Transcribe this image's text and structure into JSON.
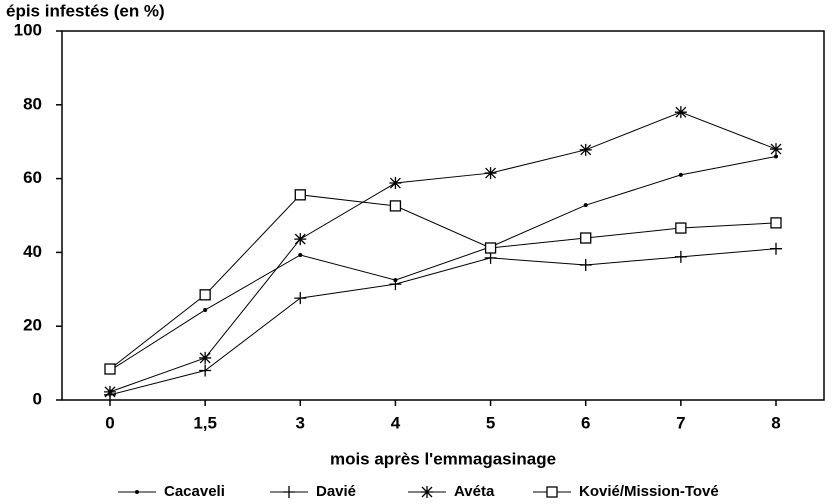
{
  "chart_data": {
    "type": "line",
    "title": "épis infestés (en %)",
    "x_label": "mois après l'emmagasinage",
    "categories": [
      "0",
      "1,5",
      "3",
      "4",
      "5",
      "6",
      "7",
      "8"
    ],
    "ylim": [
      0,
      100
    ],
    "yticks": [
      0,
      20,
      40,
      60,
      80,
      100
    ],
    "legend": "bottom",
    "series": [
      {
        "name": "Cacaveli",
        "color": "#000",
        "marker": "dot",
        "values": [
          8,
          24.4,
          39.3,
          32.5,
          41.5,
          52.8,
          61,
          66
        ]
      },
      {
        "name": "Davié",
        "color": "#000",
        "marker": "plus",
        "values": [
          1.4,
          8,
          27.6,
          31.4,
          38.5,
          36.6,
          38.8,
          41
        ]
      },
      {
        "name": "Avéta",
        "color": "#000",
        "marker": "star",
        "values": [
          2.2,
          11.4,
          43.6,
          58.8,
          61.5,
          67.8,
          78,
          68
        ]
      },
      {
        "name": "Kovié/Mission-Tové",
        "color": "#000",
        "marker": "square",
        "values": [
          8.4,
          28.5,
          55.6,
          52.6,
          41.2,
          43.9,
          46.6,
          48
        ]
      }
    ]
  }
}
